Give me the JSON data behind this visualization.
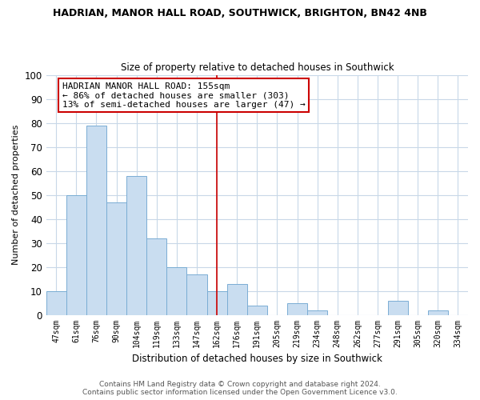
{
  "title": "HADRIAN, MANOR HALL ROAD, SOUTHWICK, BRIGHTON, BN42 4NB",
  "subtitle": "Size of property relative to detached houses in Southwick",
  "xlabel": "Distribution of detached houses by size in Southwick",
  "ylabel": "Number of detached properties",
  "categories": [
    "47sqm",
    "61sqm",
    "76sqm",
    "90sqm",
    "104sqm",
    "119sqm",
    "133sqm",
    "147sqm",
    "162sqm",
    "176sqm",
    "191sqm",
    "205sqm",
    "219sqm",
    "234sqm",
    "248sqm",
    "262sqm",
    "277sqm",
    "291sqm",
    "305sqm",
    "320sqm",
    "334sqm"
  ],
  "values": [
    10,
    50,
    79,
    47,
    58,
    32,
    20,
    17,
    10,
    13,
    4,
    0,
    5,
    2,
    0,
    0,
    0,
    6,
    0,
    2,
    0
  ],
  "bar_color": "#c9ddf0",
  "bar_edge_color": "#7aadd4",
  "vline_index": 8,
  "vline_color": "#cc0000",
  "annotation_line1": "HADRIAN MANOR HALL ROAD: 155sqm",
  "annotation_line2": "← 86% of detached houses are smaller (303)",
  "annotation_line3": "13% of semi-detached houses are larger (47) →",
  "annotation_box_edgecolor": "#cc0000",
  "ylim": [
    0,
    100
  ],
  "yticks": [
    0,
    10,
    20,
    30,
    40,
    50,
    60,
    70,
    80,
    90,
    100
  ],
  "grid_color": "#c8d8e8",
  "title_fontsize": 9.0,
  "subtitle_fontsize": 8.5,
  "footnote1": "Contains HM Land Registry data © Crown copyright and database right 2024.",
  "footnote2": "Contains public sector information licensed under the Open Government Licence v3.0."
}
